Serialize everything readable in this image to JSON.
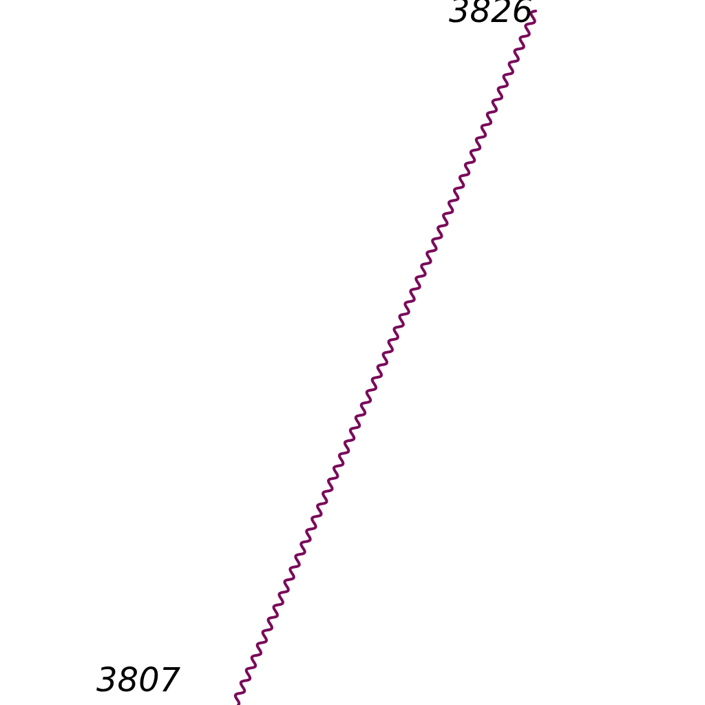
{
  "map": {
    "labels": {
      "top": "3826",
      "bottom": "3807"
    },
    "feature": {
      "type": "wavy-line",
      "color": "#7a0a5a"
    }
  }
}
